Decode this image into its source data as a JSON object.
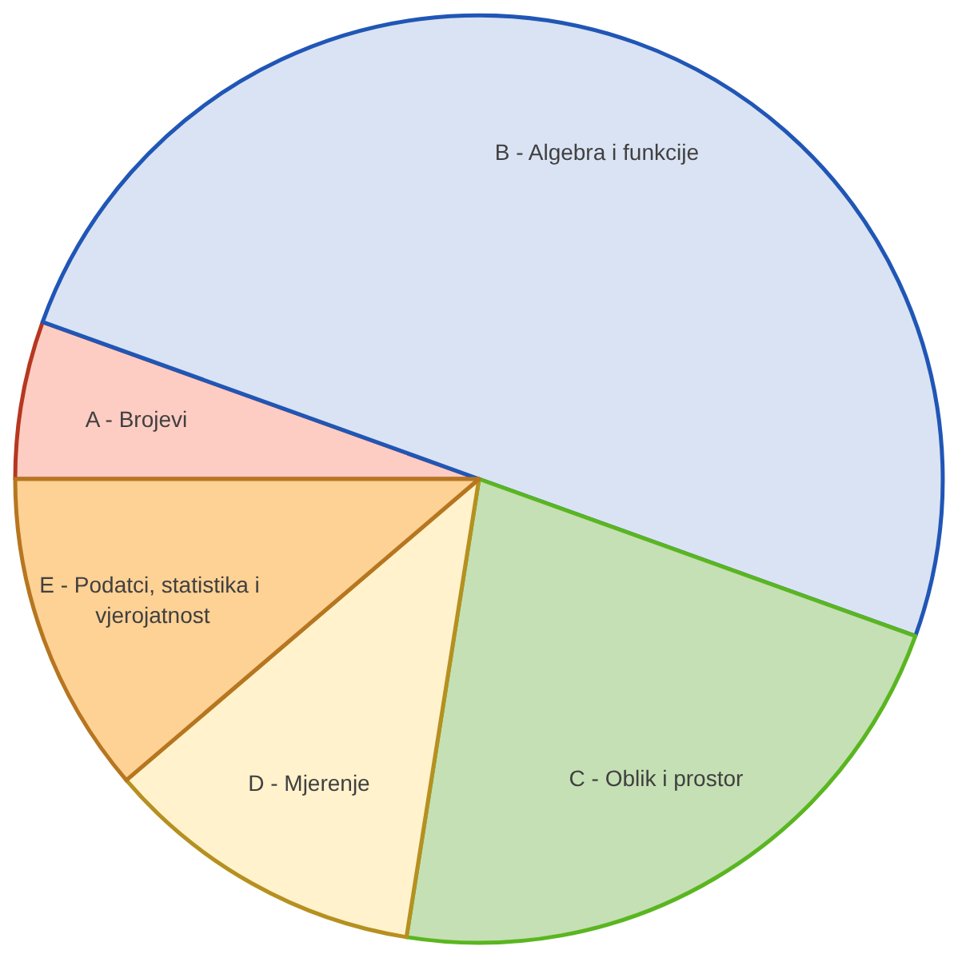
{
  "chart_data": {
    "type": "pie",
    "categories": [
      "A - Brojevi",
      "B - Algebra i funkcije",
      "C - Oblik i prostor",
      "D - Mjerenje",
      "E - Podatci, statistika i vjerojatnost"
    ],
    "values": [
      5.5,
      50,
      22,
      11.25,
      11.25
    ],
    "colors": [
      "#fdccc3",
      "#dae3f3",
      "#c5e0b4",
      "#fff2cc",
      "#fed194"
    ]
  }
}
